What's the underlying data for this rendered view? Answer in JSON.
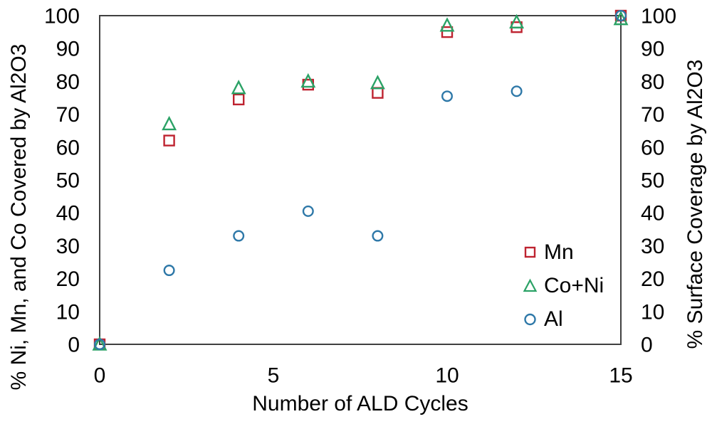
{
  "chart_data": {
    "type": "scatter",
    "title": "",
    "xlabel": "Number of ALD Cycles",
    "ylabel_left": "% Ni, Mn, and Co Covered by Al2O3",
    "ylabel_right": "% Surface Coverage by Al2O3",
    "x": [
      0,
      2,
      4,
      6,
      8,
      10,
      12,
      15
    ],
    "xlim": [
      0,
      15
    ],
    "ylim": [
      0,
      100
    ],
    "x_ticks": [
      0,
      5,
      10,
      15
    ],
    "y_ticks": [
      0,
      10,
      20,
      30,
      40,
      50,
      60,
      70,
      80,
      90,
      100
    ],
    "grid": false,
    "legend_position": "inside-bottom-right",
    "series": [
      {
        "name": "Mn",
        "marker": "square",
        "color": "#BE2330",
        "values": [
          0,
          62,
          74.5,
          79,
          76.5,
          95,
          96.5,
          100
        ]
      },
      {
        "name": "Co+Ni",
        "marker": "triangle",
        "color": "#2BA266",
        "values": [
          0,
          67,
          78,
          80,
          79.5,
          97,
          98,
          99
        ]
      },
      {
        "name": "Al",
        "marker": "circle",
        "color": "#2E78A8",
        "values": [
          0,
          22.5,
          33,
          40.5,
          33,
          75.5,
          77,
          100
        ]
      }
    ],
    "frame_color": "#404040",
    "text_color": "#000000"
  }
}
